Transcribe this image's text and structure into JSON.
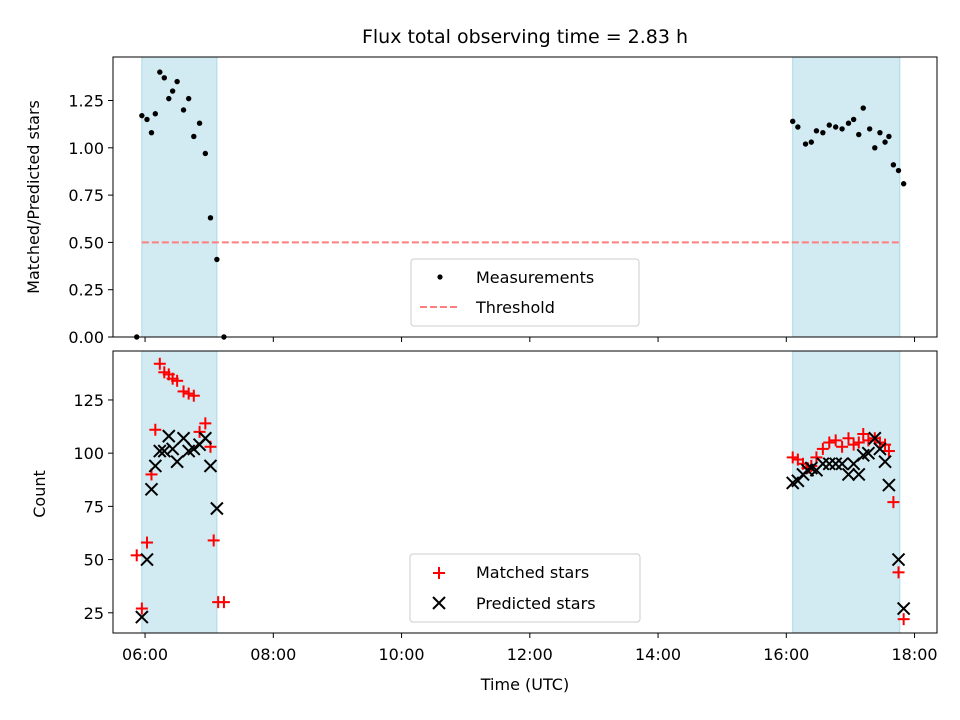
{
  "title": "Flux total observing time = 2.83 h",
  "colors": {
    "span": "#add8e6",
    "measurement": "#000000",
    "threshold": "#ff7f7f",
    "matched": "#ff0000",
    "predicted": "#000000"
  },
  "chart_data": [
    {
      "type": "scatter",
      "name": "top",
      "ylabel": "Matched/Predicted stars",
      "xlim": [
        6.0,
        18.85
      ],
      "ylim": [
        0,
        1.48
      ],
      "x_ticks": [
        6.5,
        8.5,
        10.5,
        12.5,
        14.5,
        16.5,
        18.5
      ],
      "x_ticks_are_hidden": true,
      "y_ticks": [
        0.0,
        0.25,
        0.5,
        0.75,
        1.0,
        1.25
      ],
      "y_tick_labels": [
        "0.00",
        "0.25",
        "0.50",
        "0.75",
        "1.00",
        "1.25"
      ],
      "shaded_spans": [
        [
          6.45,
          7.62
        ],
        [
          16.6,
          18.27
        ]
      ],
      "threshold": 0.5,
      "threshold_range": [
        6.45,
        18.27
      ],
      "legend": {
        "position": "lower-center",
        "entries": [
          "Measurements",
          "Threshold"
        ]
      },
      "series": [
        {
          "name": "Measurements",
          "marker": "dot",
          "points": [
            [
              6.37,
              0.0
            ],
            [
              6.45,
              1.17
            ],
            [
              6.53,
              1.15
            ],
            [
              6.6,
              1.08
            ],
            [
              6.66,
              1.18
            ],
            [
              6.73,
              1.4
            ],
            [
              6.8,
              1.37
            ],
            [
              6.87,
              1.26
            ],
            [
              6.93,
              1.3
            ],
            [
              7.0,
              1.35
            ],
            [
              7.1,
              1.2
            ],
            [
              7.18,
              1.26
            ],
            [
              7.26,
              1.06
            ],
            [
              7.35,
              1.13
            ],
            [
              7.44,
              0.97
            ],
            [
              7.52,
              0.63
            ],
            [
              7.62,
              0.41
            ],
            [
              7.73,
              0.0
            ],
            [
              16.6,
              1.14
            ],
            [
              16.68,
              1.11
            ],
            [
              16.8,
              1.02
            ],
            [
              16.89,
              1.03
            ],
            [
              16.97,
              1.09
            ],
            [
              17.07,
              1.08
            ],
            [
              17.17,
              1.12
            ],
            [
              17.27,
              1.11
            ],
            [
              17.37,
              1.1
            ],
            [
              17.47,
              1.13
            ],
            [
              17.55,
              1.15
            ],
            [
              17.63,
              1.07
            ],
            [
              17.7,
              1.21
            ],
            [
              17.8,
              1.1
            ],
            [
              17.88,
              1.0
            ],
            [
              17.96,
              1.08
            ],
            [
              18.04,
              1.03
            ],
            [
              18.1,
              1.06
            ],
            [
              18.17,
              0.91
            ],
            [
              18.25,
              0.88
            ],
            [
              18.33,
              0.81
            ]
          ]
        }
      ]
    },
    {
      "type": "scatter",
      "name": "bottom",
      "ylabel": "Count",
      "xlabel": "Time (UTC)",
      "xlim": [
        6.0,
        18.85
      ],
      "ylim": [
        15.5,
        148
      ],
      "x_ticks": [
        6.5,
        8.5,
        10.5,
        12.5,
        14.5,
        16.5,
        18.5
      ],
      "x_tick_labels": [
        "06:00",
        "08:00",
        "10:00",
        "12:00",
        "14:00",
        "16:00",
        "18:00"
      ],
      "y_ticks": [
        25,
        50,
        75,
        100,
        125
      ],
      "y_tick_labels": [
        "25",
        "50",
        "75",
        "100",
        "125"
      ],
      "shaded_spans": [
        [
          6.45,
          7.62
        ],
        [
          16.6,
          18.27
        ]
      ],
      "legend": {
        "position": "lower-center",
        "entries": [
          "Matched stars",
          "Predicted stars"
        ]
      },
      "series": [
        {
          "name": "Matched stars",
          "marker": "plus",
          "points": [
            [
              6.37,
              52
            ],
            [
              6.45,
              27
            ],
            [
              6.53,
              58
            ],
            [
              6.6,
              90
            ],
            [
              6.66,
              111
            ],
            [
              6.73,
              142
            ],
            [
              6.8,
              138
            ],
            [
              6.87,
              137
            ],
            [
              6.93,
              135
            ],
            [
              7.0,
              134
            ],
            [
              7.1,
              129
            ],
            [
              7.18,
              128
            ],
            [
              7.26,
              127
            ],
            [
              7.35,
              110
            ],
            [
              7.44,
              114
            ],
            [
              7.52,
              103
            ],
            [
              7.57,
              59
            ],
            [
              7.64,
              30
            ],
            [
              7.73,
              30
            ],
            [
              16.6,
              98
            ],
            [
              16.68,
              97
            ],
            [
              16.76,
              95
            ],
            [
              16.83,
              93
            ],
            [
              16.89,
              94
            ],
            [
              16.97,
              98
            ],
            [
              17.07,
              102
            ],
            [
              17.17,
              105
            ],
            [
              17.27,
              106
            ],
            [
              17.37,
              103
            ],
            [
              17.47,
              107
            ],
            [
              17.55,
              104
            ],
            [
              17.63,
              105
            ],
            [
              17.7,
              109
            ],
            [
              17.78,
              106
            ],
            [
              17.88,
              107
            ],
            [
              17.96,
              105
            ],
            [
              18.04,
              104
            ],
            [
              18.1,
              101
            ],
            [
              18.17,
              77
            ],
            [
              18.25,
              44
            ],
            [
              18.33,
              22
            ]
          ]
        },
        {
          "name": "Predicted stars",
          "marker": "x",
          "points": [
            [
              6.45,
              23
            ],
            [
              6.53,
              50
            ],
            [
              6.6,
              83
            ],
            [
              6.66,
              94
            ],
            [
              6.73,
              101
            ],
            [
              6.8,
              101
            ],
            [
              6.87,
              108
            ],
            [
              6.93,
              102
            ],
            [
              7.0,
              96
            ],
            [
              7.1,
              107
            ],
            [
              7.18,
              101
            ],
            [
              7.26,
              102
            ],
            [
              7.35,
              104
            ],
            [
              7.44,
              107
            ],
            [
              7.52,
              94
            ],
            [
              7.62,
              74
            ],
            [
              16.6,
              86
            ],
            [
              16.68,
              87
            ],
            [
              16.76,
              90
            ],
            [
              16.83,
              92
            ],
            [
              16.89,
              93
            ],
            [
              16.97,
              92
            ],
            [
              17.07,
              95
            ],
            [
              17.17,
              95
            ],
            [
              17.27,
              95
            ],
            [
              17.37,
              95
            ],
            [
              17.47,
              90
            ],
            [
              17.55,
              95
            ],
            [
              17.63,
              90
            ],
            [
              17.7,
              99
            ],
            [
              17.78,
              100
            ],
            [
              17.88,
              107
            ],
            [
              17.96,
              102
            ],
            [
              18.04,
              96
            ],
            [
              18.1,
              85
            ],
            [
              18.25,
              50
            ],
            [
              18.33,
              27
            ]
          ]
        }
      ]
    }
  ]
}
